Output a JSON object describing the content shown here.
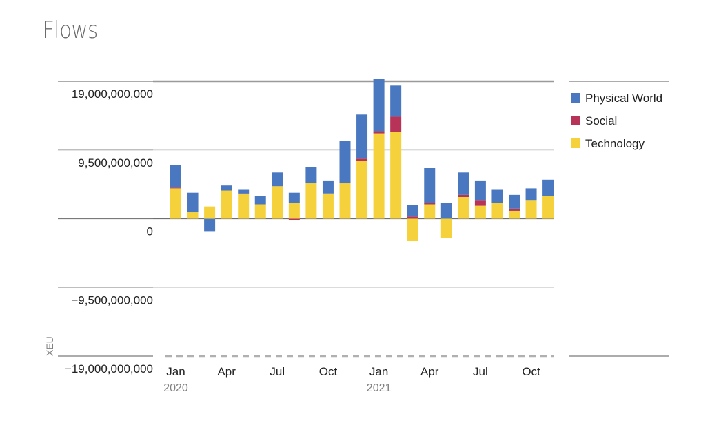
{
  "title": "Flows",
  "chart_data": {
    "type": "bar",
    "stacked": true,
    "title": "Flows",
    "ylabel": "XEU",
    "ylim": [
      -19000000000,
      19000000000
    ],
    "yticks": [
      19000000000,
      9500000000,
      0,
      -9500000000,
      -19000000000
    ],
    "ytick_labels": [
      "19,000,000,000",
      "9,500,000,000",
      "0",
      "−9,500,000,000",
      "−19,000,000,000"
    ],
    "xtick_labels": [
      {
        "index": 0,
        "label": "Jan",
        "sublabel": "2020"
      },
      {
        "index": 3,
        "label": "Apr"
      },
      {
        "index": 6,
        "label": "Jul"
      },
      {
        "index": 9,
        "label": "Oct"
      },
      {
        "index": 12,
        "label": "Jan",
        "sublabel": "2021"
      },
      {
        "index": 15,
        "label": "Apr"
      },
      {
        "index": 18,
        "label": "Jul"
      },
      {
        "index": 21,
        "label": "Oct"
      }
    ],
    "categories": [
      "2020-01",
      "2020-02",
      "2020-03",
      "2020-04",
      "2020-05",
      "2020-06",
      "2020-07",
      "2020-08",
      "2020-09",
      "2020-10",
      "2020-11",
      "2020-12",
      "2021-01",
      "2021-02",
      "2021-03",
      "2021-04",
      "2021-05",
      "2021-06",
      "2021-07",
      "2021-08",
      "2021-09",
      "2021-10",
      "2021-11"
    ],
    "series": [
      {
        "name": "Technology",
        "color": "#f5d23c",
        "values": [
          4200000000,
          900000000,
          1700000000,
          3900000000,
          3400000000,
          2000000000,
          4500000000,
          2200000000,
          4900000000,
          3500000000,
          4900000000,
          8000000000,
          11800000000,
          12000000000,
          -3100000000,
          2000000000,
          -2700000000,
          3000000000,
          1800000000,
          2200000000,
          1100000000,
          2500000000,
          3100000000
        ]
      },
      {
        "name": "Social",
        "color": "#b73458",
        "values": [
          100000000,
          0,
          0,
          0,
          100000000,
          0,
          0,
          -200000000,
          0,
          0,
          100000000,
          300000000,
          300000000,
          2100000000,
          300000000,
          200000000,
          0,
          300000000,
          700000000,
          0,
          300000000,
          0,
          0
        ]
      },
      {
        "name": "Physical World",
        "color": "#4a78c0",
        "values": [
          3100000000,
          2700000000,
          -1800000000,
          700000000,
          500000000,
          1100000000,
          1900000000,
          1400000000,
          2200000000,
          1700000000,
          5800000000,
          6100000000,
          7200000000,
          4300000000,
          1600000000,
          4800000000,
          2200000000,
          3100000000,
          2700000000,
          1800000000,
          1900000000,
          1700000000,
          2300000000
        ]
      }
    ],
    "legend": {
      "position": "right",
      "items": [
        {
          "label": "Physical World",
          "color": "#4a78c0"
        },
        {
          "label": "Social",
          "color": "#b73458"
        },
        {
          "label": "Technology",
          "color": "#f5d23c"
        }
      ]
    }
  }
}
